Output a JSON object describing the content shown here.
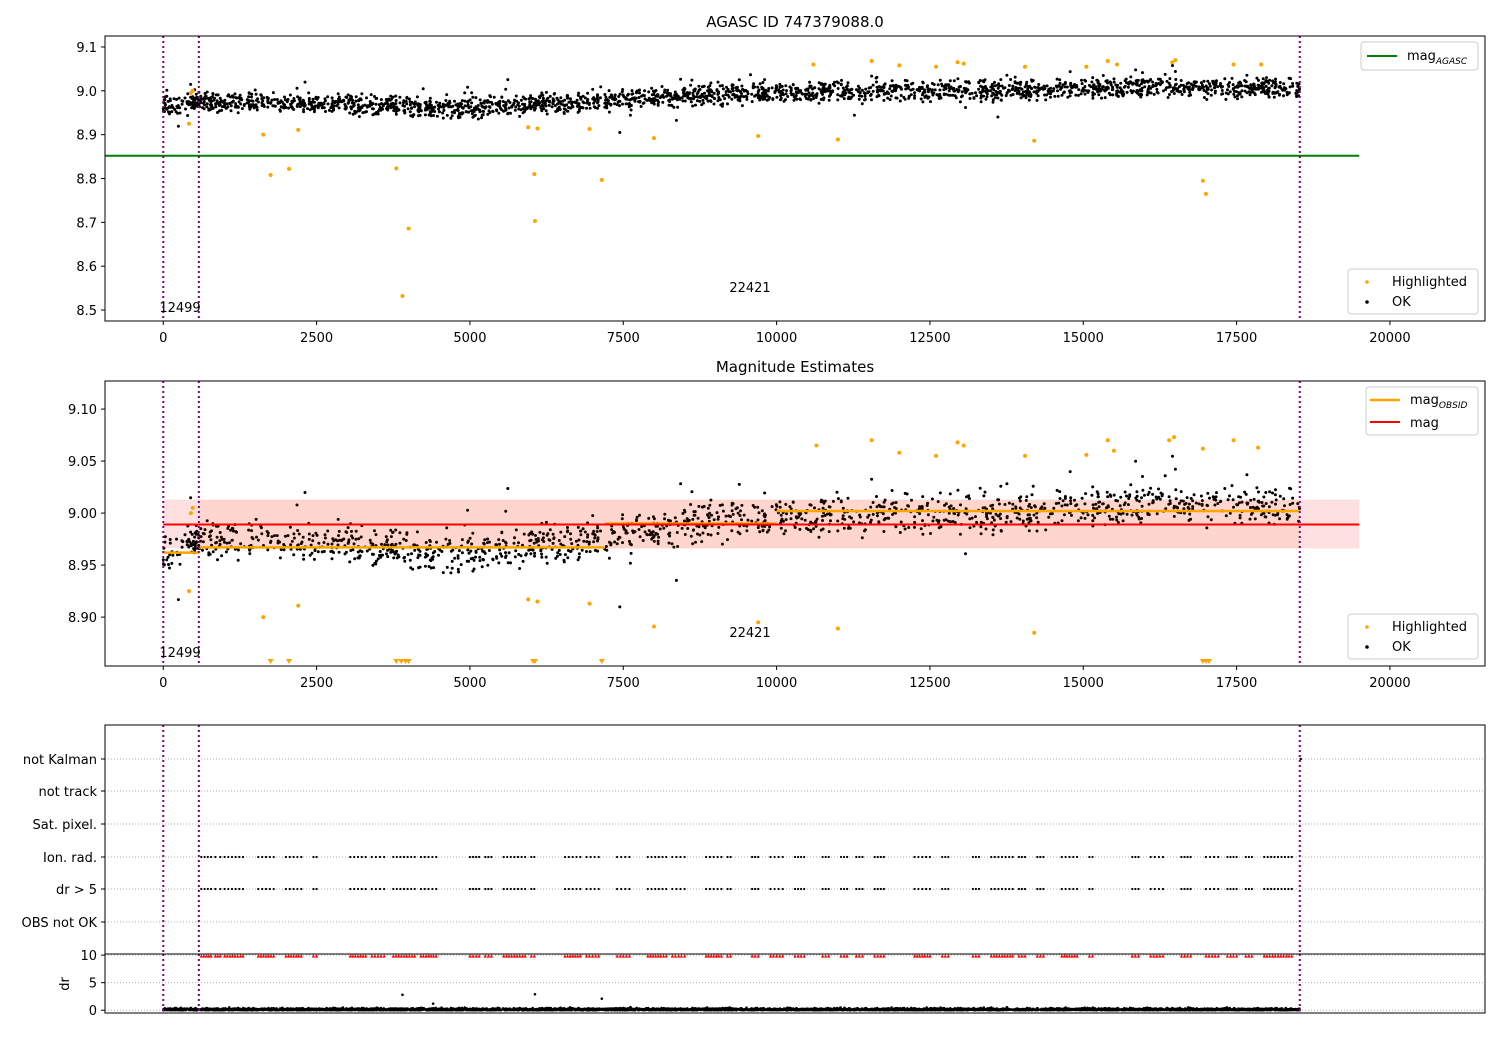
{
  "chart_data": [
    {
      "type": "scatter",
      "title": "AGASC ID 747379088.0",
      "xlim": [
        -950,
        21550
      ],
      "ylim": [
        8.475,
        9.125
      ],
      "xticks": [
        0,
        2500,
        5000,
        7500,
        10000,
        12500,
        15000,
        17500,
        20000
      ],
      "yticks": [
        8.5,
        8.6,
        8.7,
        8.8,
        8.9,
        9.0,
        9.1
      ],
      "ytick_decimals": 1,
      "vlines": [
        0,
        580,
        18530
      ],
      "hlines": [
        {
          "name": "mag_AGASC",
          "y": 8.852,
          "x0": -950,
          "x1": 19500,
          "color": "#008000"
        }
      ],
      "annotations": [
        {
          "text": "12499",
          "x": 300,
          "y": 8.505
        },
        {
          "text": "22421",
          "x": 9560,
          "y": 8.55
        }
      ],
      "ok_band": {
        "x0": 0,
        "x1": 18530,
        "segments": [
          [
            0,
            8.965
          ],
          [
            580,
            8.975
          ],
          [
            3000,
            8.968
          ],
          [
            5000,
            8.962
          ],
          [
            7000,
            8.975
          ],
          [
            8500,
            8.99
          ],
          [
            10000,
            8.995
          ],
          [
            12000,
            9.0
          ],
          [
            14000,
            9.0
          ],
          [
            16000,
            9.01
          ],
          [
            18530,
            9.005
          ]
        ],
        "spread": 0.025
      },
      "highlighted_points": [
        [
          420,
          8.925
        ],
        [
          450,
          8.995
        ],
        [
          480,
          9.0
        ],
        [
          1630,
          8.9
        ],
        [
          1750,
          8.808
        ],
        [
          2050,
          8.822
        ],
        [
          2200,
          8.911
        ],
        [
          3800,
          8.823
        ],
        [
          3900,
          8.532
        ],
        [
          4000,
          8.686
        ],
        [
          5950,
          8.917
        ],
        [
          6050,
          8.81
        ],
        [
          6060,
          8.703
        ],
        [
          6100,
          8.914
        ],
        [
          6950,
          8.913
        ],
        [
          7150,
          8.797
        ],
        [
          8000,
          8.892
        ],
        [
          9700,
          8.897
        ],
        [
          10600,
          9.06
        ],
        [
          11000,
          8.889
        ],
        [
          11550,
          9.068
        ],
        [
          12000,
          9.058
        ],
        [
          12600,
          9.055
        ],
        [
          12950,
          9.065
        ],
        [
          13050,
          9.062
        ],
        [
          14050,
          9.055
        ],
        [
          14200,
          8.886
        ],
        [
          15050,
          9.055
        ],
        [
          15400,
          9.068
        ],
        [
          15550,
          9.06
        ],
        [
          16450,
          9.065
        ],
        [
          16500,
          9.07
        ],
        [
          16950,
          8.795
        ],
        [
          17000,
          8.765
        ],
        [
          17450,
          9.06
        ],
        [
          17900,
          9.06
        ]
      ],
      "legend": [
        {
          "label": "Highlighted",
          "color": "#ffa500"
        },
        {
          "label": "OK",
          "color": "#000000"
        }
      ],
      "legend_top": {
        "label": "mag",
        "sub": "AGASC",
        "color": "#008000"
      }
    },
    {
      "type": "scatter",
      "title": "Magnitude Estimates",
      "xlim": [
        -950,
        21550
      ],
      "ylim": [
        8.853,
        9.127
      ],
      "xticks": [
        0,
        2500,
        5000,
        7500,
        10000,
        12500,
        15000,
        17500,
        20000
      ],
      "yticks": [
        8.9,
        8.95,
        9.0,
        9.05,
        9.1
      ],
      "ytick_decimals": 2,
      "vlines": [
        0,
        580,
        18530
      ],
      "mag": 8.989,
      "mag_band": [
        8.966,
        9.013
      ],
      "mag_obsid_segments": [
        [
          0,
          580,
          8.962
        ],
        [
          580,
          7200,
          8.967
        ],
        [
          7200,
          10000,
          8.99
        ],
        [
          10000,
          18530,
          9.002
        ]
      ],
      "annotations": [
        {
          "text": "12499",
          "x": 300,
          "y": 8.86
        },
        {
          "text": "22421",
          "x": 9560,
          "y": 8.882
        }
      ],
      "ok_band": {
        "x0": 0,
        "x1": 18530,
        "segments": [
          [
            0,
            8.96
          ],
          [
            580,
            8.975
          ],
          [
            3000,
            8.968
          ],
          [
            5000,
            8.962
          ],
          [
            7000,
            8.975
          ],
          [
            8500,
            8.99
          ],
          [
            10000,
            8.995
          ],
          [
            12000,
            9.0
          ],
          [
            14000,
            9.0
          ],
          [
            16000,
            9.01
          ],
          [
            18530,
            9.005
          ]
        ],
        "spread": 0.02
      },
      "highlighted_points": [
        [
          420,
          8.925
        ],
        [
          450,
          9.0
        ],
        [
          480,
          9.005
        ],
        [
          1630,
          8.9
        ],
        [
          2200,
          8.911
        ],
        [
          5950,
          8.917
        ],
        [
          6100,
          8.915
        ],
        [
          6950,
          8.913
        ],
        [
          8000,
          8.891
        ],
        [
          9700,
          8.895
        ],
        [
          10650,
          9.065
        ],
        [
          11000,
          8.889
        ],
        [
          11550,
          9.07
        ],
        [
          12000,
          9.058
        ],
        [
          12600,
          9.055
        ],
        [
          12950,
          9.068
        ],
        [
          13050,
          9.065
        ],
        [
          14050,
          9.055
        ],
        [
          14200,
          8.885
        ],
        [
          15050,
          9.056
        ],
        [
          15400,
          9.07
        ],
        [
          15500,
          9.06
        ],
        [
          16400,
          9.07
        ],
        [
          16480,
          9.073
        ],
        [
          16950,
          9.062
        ],
        [
          17450,
          9.07
        ],
        [
          17850,
          9.063
        ]
      ],
      "offscale_markers": [
        1750,
        2050,
        3800,
        3880,
        3950,
        4000,
        6030,
        6060,
        7150,
        16950,
        17000,
        17050
      ],
      "legend": [
        {
          "label": "Highlighted",
          "color": "#ffa500"
        },
        {
          "label": "OK",
          "color": "#000000"
        }
      ],
      "legend_top": [
        {
          "label": "mag",
          "sub": "OBSID",
          "color": "#ffa500"
        },
        {
          "label": "mag",
          "sub": "",
          "color": "#ff0000"
        }
      ]
    },
    {
      "type": "scatter",
      "title": "",
      "xlim": [
        -950,
        21550
      ],
      "categories": [
        "not Kalman",
        "not track",
        "Sat. pixel.",
        "Ion. rad.",
        "dr > 5",
        "OBS not OK"
      ],
      "vlines": [
        0,
        580,
        18530
      ],
      "flag_clusters": [
        [
          620,
          780
        ],
        [
          850,
          930
        ],
        [
          1000,
          1300
        ],
        [
          1550,
          1800
        ],
        [
          2000,
          2250
        ],
        [
          2450,
          2500
        ],
        [
          3050,
          3300
        ],
        [
          3400,
          3600
        ],
        [
          3750,
          4100
        ],
        [
          4200,
          4450
        ],
        [
          5000,
          5150
        ],
        [
          5250,
          5350
        ],
        [
          5550,
          5900
        ],
        [
          6000,
          6050
        ],
        [
          6550,
          6800
        ],
        [
          6900,
          7100
        ],
        [
          7400,
          7600
        ],
        [
          7900,
          8200
        ],
        [
          8300,
          8500
        ],
        [
          8850,
          9100
        ],
        [
          9200,
          9250
        ],
        [
          9600,
          9700
        ],
        [
          9900,
          10100
        ],
        [
          10300,
          10450
        ],
        [
          10750,
          10850
        ],
        [
          11050,
          11150
        ],
        [
          11300,
          11400
        ],
        [
          11600,
          11750
        ],
        [
          12250,
          12500
        ],
        [
          12700,
          12800
        ],
        [
          13200,
          13300
        ],
        [
          13500,
          13850
        ],
        [
          13950,
          14050
        ],
        [
          14250,
          14350
        ],
        [
          14650,
          14900
        ],
        [
          15100,
          15150
        ],
        [
          15800,
          15900
        ],
        [
          16100,
          16300
        ],
        [
          16600,
          16750
        ],
        [
          17000,
          17200
        ],
        [
          17350,
          17500
        ],
        [
          17650,
          17750
        ],
        [
          17950,
          18400
        ]
      ]
    },
    {
      "type": "scatter",
      "title": "",
      "xlim": [
        -950,
        21550
      ],
      "ylabel": "dr",
      "ylim": [
        -0.5,
        10.2
      ],
      "yticks": [
        0,
        5,
        10
      ],
      "vlines": [
        0,
        580,
        18530
      ],
      "dr_spikes": [
        [
          3900,
          2.8
        ],
        [
          6060,
          2.9
        ],
        [
          7150,
          2.1
        ],
        [
          4400,
          1.2
        ]
      ]
    }
  ]
}
